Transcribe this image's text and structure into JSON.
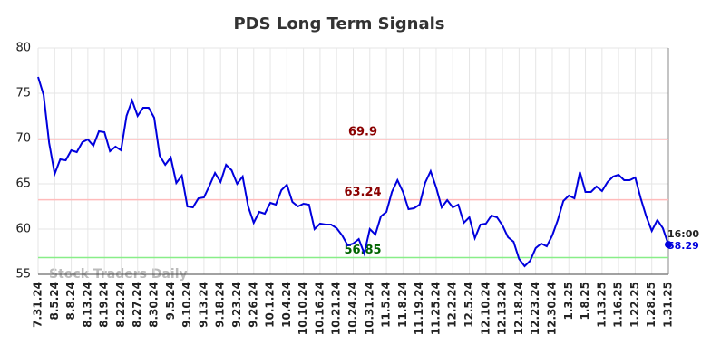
{
  "chart_data": {
    "type": "line",
    "title": "PDS Long Term Signals",
    "categories": [
      "7.31.24",
      null,
      null,
      "8.5.24",
      null,
      null,
      "8.8.24",
      null,
      null,
      "8.13.24",
      null,
      null,
      "8.19.24",
      null,
      null,
      "8.22.24",
      null,
      null,
      "8.27.24",
      null,
      null,
      "8.30.24",
      null,
      null,
      "9.5.24",
      null,
      null,
      "9.10.24",
      null,
      null,
      "9.13.24",
      null,
      null,
      "9.18.24",
      null,
      null,
      "9.23.24",
      null,
      null,
      "9.26.24",
      null,
      null,
      "10.1.24",
      null,
      null,
      "10.4.24",
      null,
      null,
      "10.10.24",
      null,
      null,
      "10.16.24",
      null,
      null,
      "10.21.24",
      null,
      null,
      "10.24.24",
      null,
      null,
      "10.31.24",
      null,
      null,
      "11.5.24",
      null,
      null,
      "11.8.24",
      null,
      null,
      "11.19.24",
      null,
      null,
      "11.25.24",
      null,
      null,
      "12.2.24",
      null,
      null,
      "12.5.24",
      null,
      null,
      "12.10.24",
      null,
      null,
      "12.13.24",
      null,
      null,
      "12.18.24",
      null,
      null,
      "12.23.24",
      null,
      null,
      "12.30.24",
      null,
      null,
      "1.3.25",
      null,
      null,
      "1.8.25",
      null,
      null,
      "1.13.25",
      null,
      null,
      "1.16.25",
      null,
      null,
      "1.22.25",
      null,
      null,
      "1.28.25",
      null,
      null,
      "1.31.25"
    ],
    "values": [
      76.8,
      74.8,
      69.5,
      66.1,
      67.7,
      67.6,
      68.7,
      68.5,
      69.6,
      69.9,
      69.2,
      70.8,
      70.7,
      68.6,
      69.1,
      68.7,
      72.5,
      74.2,
      72.5,
      73.4,
      73.4,
      72.3,
      68.1,
      67.1,
      67.9,
      65.1,
      65.9,
      62.5,
      62.4,
      63.4,
      63.5,
      64.8,
      66.2,
      65.2,
      67.1,
      66.5,
      65.0,
      65.8,
      62.5,
      60.7,
      61.9,
      61.7,
      62.9,
      62.7,
      64.3,
      64.9,
      63.0,
      62.5,
      62.8,
      62.7,
      60.0,
      60.6,
      60.5,
      60.5,
      60.1,
      59.3,
      58.2,
      58.4,
      58.9,
      57.3,
      60.0,
      59.4,
      61.4,
      61.9,
      64.1,
      65.4,
      64.1,
      62.2,
      62.3,
      62.7,
      65.1,
      66.4,
      64.6,
      62.4,
      63.2,
      62.4,
      62.7,
      60.7,
      61.3,
      59.0,
      60.5,
      60.6,
      61.5,
      61.3,
      60.4,
      59.1,
      58.6,
      56.7,
      55.9,
      56.5,
      57.9,
      58.4,
      58.1,
      59.3,
      61.0,
      63.1,
      63.7,
      63.4,
      66.3,
      64.1,
      64.1,
      64.7,
      64.2,
      65.2,
      65.8,
      66.0,
      65.4,
      65.4,
      65.7,
      63.4,
      61.4,
      59.8,
      61.0,
      60.1,
      58.29
    ],
    "color": "#0000dd",
    "ylim": [
      55,
      80
    ],
    "yticks": [
      55,
      60,
      65,
      70,
      75,
      80
    ],
    "grid": true,
    "reference_lines": [
      {
        "value": 69.9,
        "color": "#ffbbbb",
        "label_color": "#8b0000"
      },
      {
        "value": 63.24,
        "color": "#ffbbbb",
        "label_color": "#8b0000"
      },
      {
        "value": 56.85,
        "color": "#88ee88",
        "label_color": "#006400"
      }
    ],
    "end_time": "16:00",
    "watermark": "Stock Traders Daily"
  }
}
